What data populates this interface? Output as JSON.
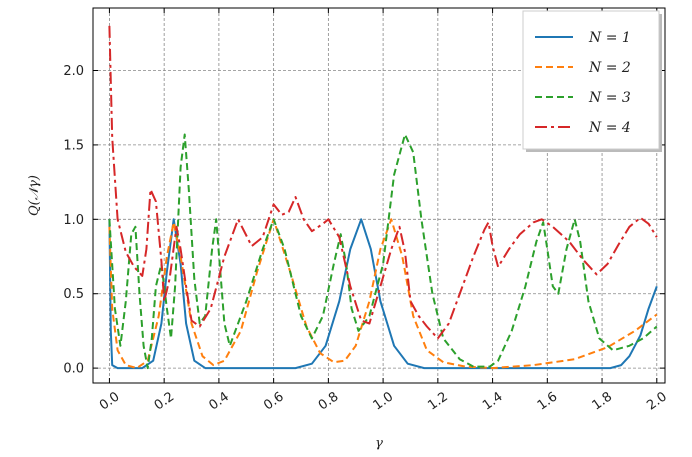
{
  "chart_data": {
    "type": "line",
    "title": "",
    "xlabel": "γ",
    "ylabel": "Q(𝒩γ)",
    "xlim": [
      -0.06,
      2.03
    ],
    "ylim": [
      -0.1,
      2.42
    ],
    "xticks": [
      "0.0",
      "0.2",
      "0.4",
      "0.6",
      "0.8",
      "1.0",
      "1.2",
      "1.4",
      "1.6",
      "1.8",
      "2.0"
    ],
    "yticks": [
      "0.0",
      "0.5",
      "1.0",
      "1.5",
      "2.0"
    ],
    "grid": true,
    "legend_position": "top-right",
    "series": [
      {
        "name": "N = 1",
        "color": "#1f77b4",
        "style": "solid",
        "points": [
          [
            0.0,
            1.0
          ],
          [
            0.005,
            0.25
          ],
          [
            0.01,
            0.02
          ],
          [
            0.03,
            0.0
          ],
          [
            0.12,
            0.0
          ],
          [
            0.16,
            0.05
          ],
          [
            0.19,
            0.3
          ],
          [
            0.21,
            0.65
          ],
          [
            0.235,
            1.0
          ],
          [
            0.26,
            0.7
          ],
          [
            0.28,
            0.3
          ],
          [
            0.31,
            0.05
          ],
          [
            0.35,
            0.0
          ],
          [
            0.68,
            0.0
          ],
          [
            0.74,
            0.03
          ],
          [
            0.79,
            0.15
          ],
          [
            0.84,
            0.45
          ],
          [
            0.88,
            0.8
          ],
          [
            0.92,
            1.0
          ],
          [
            0.955,
            0.8
          ],
          [
            0.99,
            0.45
          ],
          [
            1.04,
            0.15
          ],
          [
            1.09,
            0.03
          ],
          [
            1.15,
            0.0
          ],
          [
            1.83,
            0.0
          ],
          [
            1.87,
            0.02
          ],
          [
            1.9,
            0.08
          ],
          [
            1.94,
            0.22
          ],
          [
            1.97,
            0.4
          ],
          [
            2.0,
            0.55
          ]
        ]
      },
      {
        "name": "N = 2",
        "color": "#ff7f0e",
        "style": "dashed",
        "points": [
          [
            0.0,
            0.95
          ],
          [
            0.01,
            0.4
          ],
          [
            0.03,
            0.12
          ],
          [
            0.06,
            0.02
          ],
          [
            0.1,
            0.0
          ],
          [
            0.14,
            0.05
          ],
          [
            0.18,
            0.35
          ],
          [
            0.21,
            0.75
          ],
          [
            0.235,
            0.98
          ],
          [
            0.26,
            0.75
          ],
          [
            0.3,
            0.3
          ],
          [
            0.34,
            0.08
          ],
          [
            0.38,
            0.02
          ],
          [
            0.42,
            0.05
          ],
          [
            0.48,
            0.25
          ],
          [
            0.54,
            0.65
          ],
          [
            0.6,
            1.0
          ],
          [
            0.66,
            0.65
          ],
          [
            0.72,
            0.28
          ],
          [
            0.77,
            0.1
          ],
          [
            0.82,
            0.04
          ],
          [
            0.86,
            0.05
          ],
          [
            0.9,
            0.15
          ],
          [
            0.95,
            0.45
          ],
          [
            0.99,
            0.8
          ],
          [
            1.03,
            1.0
          ],
          [
            1.07,
            0.75
          ],
          [
            1.11,
            0.35
          ],
          [
            1.16,
            0.12
          ],
          [
            1.22,
            0.04
          ],
          [
            1.3,
            0.01
          ],
          [
            1.4,
            0.0
          ],
          [
            1.55,
            0.02
          ],
          [
            1.7,
            0.06
          ],
          [
            1.82,
            0.14
          ],
          [
            1.92,
            0.25
          ],
          [
            2.0,
            0.36
          ]
        ]
      },
      {
        "name": "N = 3",
        "color": "#2ca02c",
        "style": "dashed",
        "points": [
          [
            0.0,
            1.0
          ],
          [
            0.02,
            0.4
          ],
          [
            0.04,
            0.15
          ],
          [
            0.06,
            0.45
          ],
          [
            0.08,
            0.9
          ],
          [
            0.095,
            0.95
          ],
          [
            0.11,
            0.5
          ],
          [
            0.125,
            0.15
          ],
          [
            0.14,
            0.0
          ],
          [
            0.155,
            0.2
          ],
          [
            0.17,
            0.55
          ],
          [
            0.19,
            0.7
          ],
          [
            0.21,
            0.4
          ],
          [
            0.225,
            0.2
          ],
          [
            0.24,
            0.55
          ],
          [
            0.26,
            1.35
          ],
          [
            0.275,
            1.57
          ],
          [
            0.29,
            1.2
          ],
          [
            0.31,
            0.6
          ],
          [
            0.33,
            0.3
          ],
          [
            0.35,
            0.35
          ],
          [
            0.375,
            0.8
          ],
          [
            0.39,
            1.0
          ],
          [
            0.405,
            0.65
          ],
          [
            0.42,
            0.3
          ],
          [
            0.44,
            0.15
          ],
          [
            0.5,
            0.45
          ],
          [
            0.56,
            0.8
          ],
          [
            0.6,
            1.0
          ],
          [
            0.64,
            0.8
          ],
          [
            0.7,
            0.35
          ],
          [
            0.74,
            0.2
          ],
          [
            0.78,
            0.35
          ],
          [
            0.82,
            0.7
          ],
          [
            0.845,
            0.9
          ],
          [
            0.865,
            0.7
          ],
          [
            0.885,
            0.4
          ],
          [
            0.91,
            0.25
          ],
          [
            0.95,
            0.35
          ],
          [
            1.0,
            0.7
          ],
          [
            1.04,
            1.3
          ],
          [
            1.08,
            1.57
          ],
          [
            1.11,
            1.45
          ],
          [
            1.14,
            1.0
          ],
          [
            1.18,
            0.5
          ],
          [
            1.22,
            0.2
          ],
          [
            1.28,
            0.06
          ],
          [
            1.33,
            0.01
          ],
          [
            1.39,
            0.01
          ],
          [
            1.42,
            0.05
          ],
          [
            1.47,
            0.25
          ],
          [
            1.52,
            0.55
          ],
          [
            1.56,
            0.85
          ],
          [
            1.585,
            0.98
          ],
          [
            1.6,
            0.8
          ],
          [
            1.62,
            0.55
          ],
          [
            1.64,
            0.5
          ],
          [
            1.67,
            0.8
          ],
          [
            1.7,
            1.0
          ],
          [
            1.72,
            0.85
          ],
          [
            1.75,
            0.45
          ],
          [
            1.79,
            0.2
          ],
          [
            1.84,
            0.12
          ],
          [
            1.9,
            0.15
          ],
          [
            1.95,
            0.2
          ],
          [
            2.0,
            0.28
          ]
        ]
      },
      {
        "name": "N = 4",
        "color": "#d62728",
        "style": "dashdot",
        "points": [
          [
            0.0,
            2.3
          ],
          [
            0.01,
            1.55
          ],
          [
            0.03,
            1.0
          ],
          [
            0.06,
            0.78
          ],
          [
            0.09,
            0.68
          ],
          [
            0.12,
            0.62
          ],
          [
            0.135,
            0.8
          ],
          [
            0.15,
            1.2
          ],
          [
            0.17,
            1.12
          ],
          [
            0.19,
            0.72
          ],
          [
            0.2,
            0.45
          ],
          [
            0.22,
            0.6
          ],
          [
            0.245,
            0.95
          ],
          [
            0.26,
            0.8
          ],
          [
            0.28,
            0.55
          ],
          [
            0.3,
            0.32
          ],
          [
            0.33,
            0.28
          ],
          [
            0.37,
            0.4
          ],
          [
            0.42,
            0.75
          ],
          [
            0.47,
            1.0
          ],
          [
            0.52,
            0.82
          ],
          [
            0.56,
            0.88
          ],
          [
            0.6,
            1.1
          ],
          [
            0.63,
            1.03
          ],
          [
            0.655,
            1.05
          ],
          [
            0.68,
            1.15
          ],
          [
            0.71,
            1.0
          ],
          [
            0.74,
            0.92
          ],
          [
            0.78,
            0.97
          ],
          [
            0.8,
            1.0
          ],
          [
            0.84,
            0.88
          ],
          [
            0.88,
            0.55
          ],
          [
            0.92,
            0.32
          ],
          [
            0.95,
            0.3
          ],
          [
            0.99,
            0.55
          ],
          [
            1.03,
            0.8
          ],
          [
            1.06,
            0.95
          ],
          [
            1.08,
            0.78
          ],
          [
            1.1,
            0.45
          ],
          [
            1.13,
            0.35
          ],
          [
            1.16,
            0.28
          ],
          [
            1.2,
            0.2
          ],
          [
            1.24,
            0.3
          ],
          [
            1.29,
            0.55
          ],
          [
            1.33,
            0.75
          ],
          [
            1.37,
            0.93
          ],
          [
            1.385,
            0.98
          ],
          [
            1.4,
            0.82
          ],
          [
            1.42,
            0.68
          ],
          [
            1.46,
            0.8
          ],
          [
            1.5,
            0.9
          ],
          [
            1.55,
            0.98
          ],
          [
            1.58,
            1.0
          ],
          [
            1.62,
            0.95
          ],
          [
            1.68,
            0.85
          ],
          [
            1.73,
            0.73
          ],
          [
            1.78,
            0.63
          ],
          [
            1.82,
            0.7
          ],
          [
            1.86,
            0.83
          ],
          [
            1.9,
            0.95
          ],
          [
            1.94,
            1.01
          ],
          [
            1.97,
            0.97
          ],
          [
            2.0,
            0.88
          ]
        ]
      }
    ]
  }
}
